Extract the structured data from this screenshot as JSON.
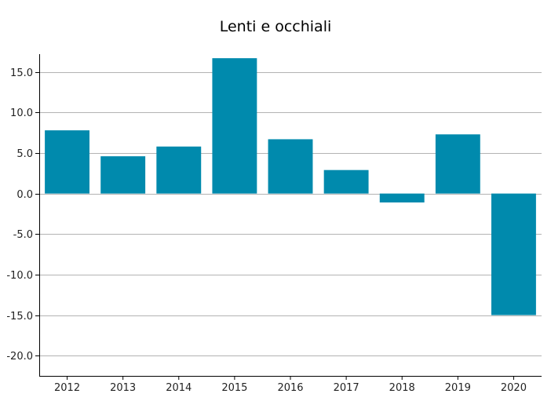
{
  "chart_data": {
    "type": "bar",
    "title": "Lenti e occhiali",
    "xlabel": "",
    "ylabel": "",
    "categories": [
      "2012",
      "2013",
      "2014",
      "2015",
      "2016",
      "2017",
      "2018",
      "2019",
      "2020"
    ],
    "values": [
      7.8,
      4.6,
      5.8,
      16.7,
      6.7,
      2.9,
      -1.1,
      7.3,
      -15.0
    ],
    "ylim": [
      -22.5,
      17.2
    ],
    "yticks": [
      15,
      10,
      5,
      0,
      -5,
      -10,
      -15,
      -20
    ],
    "ytick_labels": [
      "15.0",
      "10.0",
      "5.0",
      "0.0",
      "-5.0",
      "-10.0",
      "-15.0",
      "-20.0"
    ],
    "grid": true,
    "bar_color": "#008aad",
    "grid_color": "#b3b3b3",
    "axis_color": "#000000"
  }
}
